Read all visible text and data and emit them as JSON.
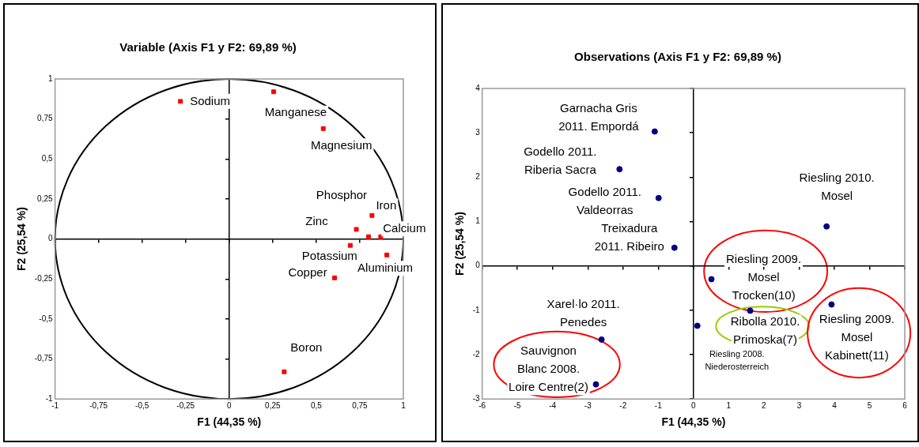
{
  "chart_data": [
    {
      "type": "scatter",
      "title": "Variable (Axis F1 y F2: 69,89 %)",
      "xlabel": "F1 (44,35 %)",
      "ylabel": "F2 (25,54 %)",
      "color": "#ff0000",
      "marker": "square",
      "legend": false,
      "x": [
        -0.28,
        0.255,
        0.54,
        0.73,
        0.82,
        0.8,
        0.87,
        0.695,
        0.905,
        0.605,
        0.316
      ],
      "values": [
        0.86,
        0.92,
        0.69,
        0.06,
        0.147,
        0.014,
        0.014,
        -0.04,
        -0.1,
        -0.243,
        -0.83
      ],
      "xlim": [
        -1,
        1
      ],
      "ylim": [
        -1,
        1
      ],
      "xticks": [
        {
          "value": -1,
          "label": "-1"
        },
        {
          "value": -0.75,
          "label": "-0,75"
        },
        {
          "value": -0.5,
          "label": "-0,5"
        },
        {
          "value": -0.25,
          "label": "-0,25"
        },
        {
          "value": 0,
          "label": "0"
        },
        {
          "value": 0.25,
          "label": "0,25"
        },
        {
          "value": 0.5,
          "label": "0,5"
        },
        {
          "value": 0.75,
          "label": "0,75"
        },
        {
          "value": 1,
          "label": "1"
        }
      ],
      "yticks": [
        {
          "value": -1,
          "label": "-1"
        },
        {
          "value": -0.75,
          "label": "-0,75"
        },
        {
          "value": -0.5,
          "label": "-0,5"
        },
        {
          "value": -0.25,
          "label": "-0,25"
        },
        {
          "value": 0,
          "label": "0"
        },
        {
          "value": 0.25,
          "label": "0,25"
        },
        {
          "value": 0.5,
          "label": "0,5"
        },
        {
          "value": 0.75,
          "label": "0,75"
        },
        {
          "value": 1,
          "label": "1"
        }
      ],
      "annotations": [
        {
          "text": "Sodium",
          "x": -0.28,
          "y": 0.86
        },
        {
          "text": "Manganese",
          "x": 0.255,
          "y": 0.92
        },
        {
          "text": "Magnesium",
          "x": 0.54,
          "y": 0.69
        },
        {
          "text": "Phosphor",
          "x": 0.8,
          "y": 0.014
        },
        {
          "text": "Iron",
          "x": 0.82,
          "y": 0.147
        },
        {
          "text": "Zinc",
          "x": 0.73,
          "y": 0.06
        },
        {
          "text": "Calcium",
          "x": 0.87,
          "y": 0.014
        },
        {
          "text": "Potassium",
          "x": 0.695,
          "y": -0.04
        },
        {
          "text": "Aluminium",
          "x": 0.905,
          "y": -0.1
        },
        {
          "text": "Copper",
          "x": 0.605,
          "y": -0.243
        },
        {
          "text": "Boron",
          "x": 0.316,
          "y": -0.83
        }
      ]
    },
    {
      "type": "scatter",
      "title": "Observations (Axis F1 y F2: 69,89 %)",
      "xlabel": "F1 (44,35 %)",
      "ylabel": "F2 (25,54 %)",
      "color": "#000080",
      "marker": "circle",
      "legend": false,
      "x": [
        -1.1,
        -2.1,
        -0.99,
        -0.54,
        3.78,
        0.51,
        1.61,
        0.11,
        3.92,
        -2.61,
        -2.77
      ],
      "values": [
        3.03,
        2.18,
        1.53,
        0.41,
        0.89,
        -0.3,
        -1.01,
        -1.35,
        -0.87,
        -1.66,
        -2.67
      ],
      "xlim": [
        -6,
        6
      ],
      "ylim": [
        -3,
        4
      ],
      "xticks": [
        -6,
        -5,
        -4,
        -3,
        -2,
        -1,
        0,
        1,
        2,
        3,
        4,
        5,
        6
      ],
      "yticks": [
        -3,
        -2,
        -1,
        0,
        1,
        2,
        3,
        4
      ],
      "annotations": [
        {
          "text": "Garnacha Gris\n2011. Empordá",
          "x": -1.1,
          "y": 3.03
        },
        {
          "text": "Godello 2011.\nRiberia Sacra",
          "x": -2.1,
          "y": 2.18
        },
        {
          "text": "Godello 2011.\nValdeorras",
          "x": -0.99,
          "y": 1.53
        },
        {
          "text": "Treixadura\n2011. Ribeiro",
          "x": -0.54,
          "y": 0.41
        },
        {
          "text": "Riesling 2010.\nMosel",
          "x": 3.78,
          "y": 0.89
        },
        {
          "text": "Riesling 2009.\nMosel\nTrocken(10)",
          "x": 0.51,
          "y": -0.3
        },
        {
          "text": "Ribolla 2010.\nPrimoska(7)",
          "x": 1.61,
          "y": -1.01
        },
        {
          "text": "Riesling 2008.\nNiederosterreich",
          "x": 0.11,
          "y": -1.35
        },
        {
          "text": "Riesling 2009.\nMosel\nKabinett(11)",
          "x": 3.92,
          "y": -0.87
        },
        {
          "text": "Xarel·lo 2011.\nPenedes",
          "x": -2.61,
          "y": -1.66
        },
        {
          "text": "Sauvignon\nBlanc 2008.\nLoire Centre(2)",
          "x": -2.77,
          "y": -2.67
        }
      ]
    }
  ]
}
